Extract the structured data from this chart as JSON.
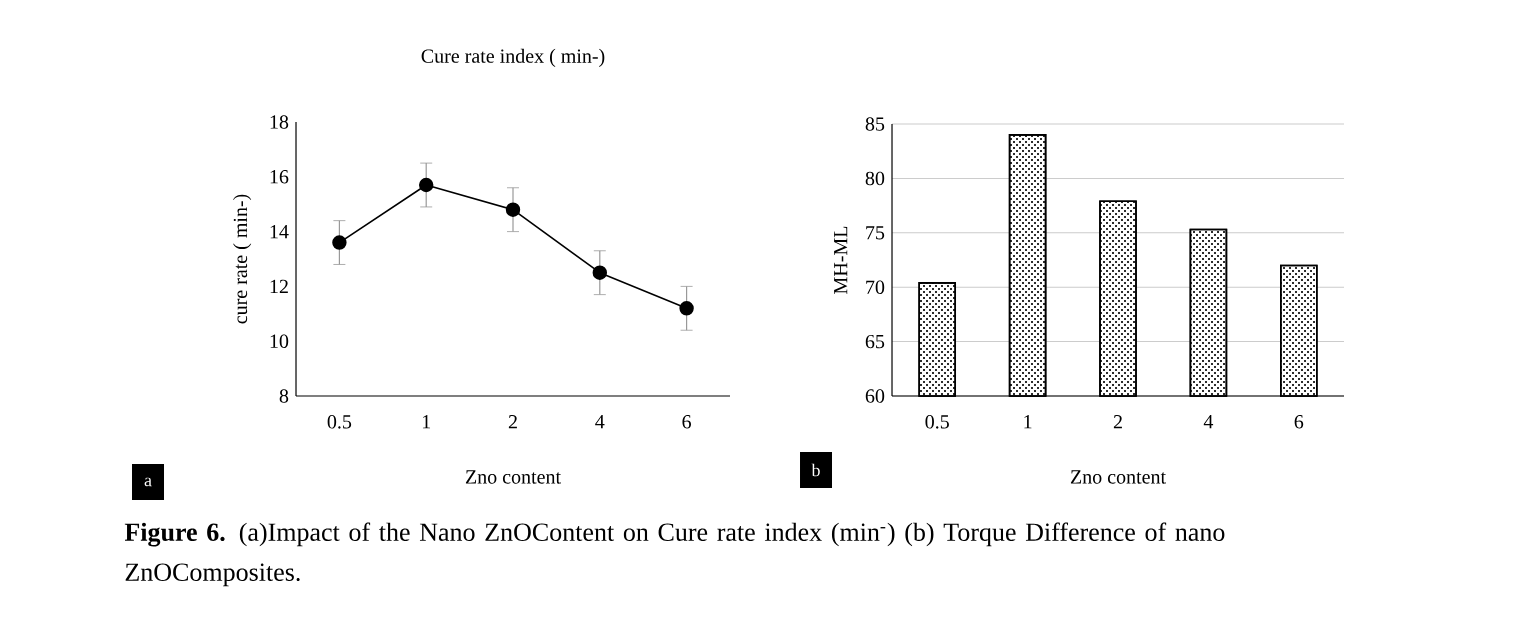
{
  "chart_data": [
    {
      "type": "line",
      "title": "Cure rate index ( min-)",
      "xlabel": "Zno content",
      "ylabel": "cure rate ( min-)",
      "categories": [
        "0.5",
        "1",
        "2",
        "4",
        "6"
      ],
      "values": [
        13.6,
        15.7,
        14.8,
        12.5,
        11.2
      ],
      "errors": [
        0.8,
        0.8,
        0.8,
        0.8,
        0.8
      ],
      "color": "#000000",
      "marker": "circle",
      "ylim": [
        8,
        18
      ],
      "yticks": [
        8,
        10,
        12,
        14,
        16,
        18
      ],
      "annotations": [
        "a",
        "**Figure 6.** (a)Impact of the Nano ZnOContent on Cure rate index (min$^{-}$) (b) Torque Difference of nano ZnOComposites."
      ]
    },
    {
      "type": "bar",
      "xlabel": "Zno content",
      "ylabel": "MH-ML",
      "categories": [
        "0.5",
        "1",
        "2",
        "4",
        "6"
      ],
      "values": [
        70.4,
        84.0,
        77.9,
        75.3,
        72.0
      ],
      "color": "#000000",
      "grid": "y",
      "ylim": [
        60,
        85
      ],
      "yticks": [
        60,
        65,
        70,
        75,
        80,
        85
      ],
      "annotations": [
        "b"
      ]
    }
  ]
}
